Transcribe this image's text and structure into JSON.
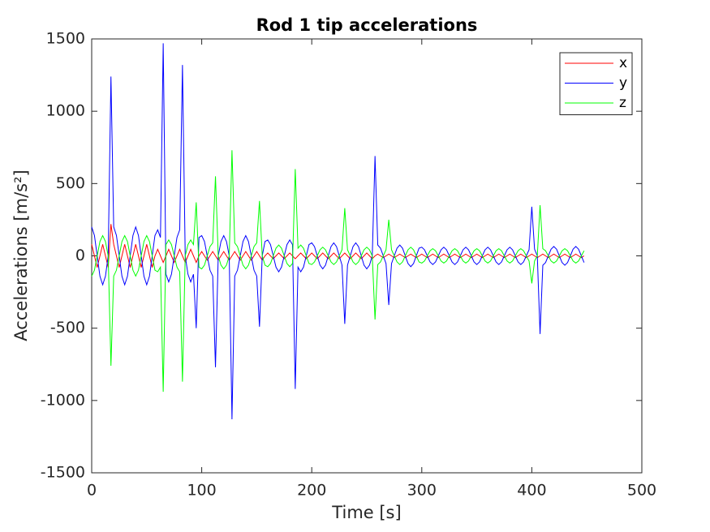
{
  "chart_data": {
    "type": "line",
    "title": "Rod 1 tip accelerations",
    "xlabel": "Time [s]",
    "ylabel": "Accelerations [m/s²]",
    "x": [
      0,
      2.5,
      5,
      7.5,
      10,
      12.5,
      15,
      17.5,
      20,
      22.5,
      25,
      27.5,
      30,
      32.5,
      35,
      37.5,
      40,
      42.5,
      45,
      47.5,
      50,
      52.5,
      55,
      57.5,
      60,
      62.5,
      65,
      67.5,
      70,
      72.5,
      75,
      77.5,
      80,
      82.5,
      85,
      87.5,
      90,
      92.5,
      95,
      97.5,
      100,
      102.5,
      105,
      107.5,
      110,
      112.5,
      115,
      117.5,
      120,
      122.5,
      125,
      127.5,
      130,
      132.5,
      135,
      137.5,
      140,
      142.5,
      145,
      147.5,
      150,
      152.5,
      155,
      157.5,
      160,
      162.5,
      165,
      167.5,
      170,
      172.5,
      175,
      177.5,
      180,
      182.5,
      185,
      187.5,
      190,
      192.5,
      195,
      197.5,
      200,
      202.5,
      205,
      207.5,
      210,
      212.5,
      215,
      217.5,
      220,
      222.5,
      225,
      227.5,
      230,
      232.5,
      235,
      237.5,
      240,
      242.5,
      245,
      247.5,
      250,
      252.5,
      255,
      257.5,
      260,
      262.5,
      265,
      267.5,
      270,
      272.5,
      275,
      277.5,
      280,
      282.5,
      285,
      287.5,
      290,
      292.5,
      295,
      297.5,
      300,
      302.5,
      305,
      307.5,
      310,
      312.5,
      315,
      317.5,
      320,
      322.5,
      325,
      327.5,
      330,
      332.5,
      335,
      337.5,
      340,
      342.5,
      345,
      347.5,
      350,
      352.5,
      355,
      357.5,
      360,
      362.5,
      365,
      367.5,
      370,
      372.5,
      375,
      377.5,
      380,
      382.5,
      385,
      387.5,
      390,
      392.5,
      395,
      397.5,
      400,
      402.5,
      405,
      407.5,
      410,
      412.5,
      415,
      417.5,
      420,
      422.5,
      425,
      427.5,
      430,
      432.5,
      435,
      437.5,
      440,
      442.5,
      445,
      447.5
    ],
    "series": [
      {
        "name": "x",
        "color": "#ff0000",
        "values": [
          80,
          0,
          -80,
          0,
          80,
          0,
          -80,
          220,
          80,
          0,
          -80,
          0,
          80,
          0,
          -80,
          0,
          80,
          0,
          -80,
          0,
          80,
          0,
          -80,
          0,
          45,
          0,
          -45,
          0,
          45,
          0,
          -45,
          0,
          45,
          0,
          -45,
          0,
          45,
          0,
          -45,
          0,
          30,
          0,
          -30,
          0,
          30,
          0,
          -30,
          0,
          30,
          0,
          -30,
          0,
          30,
          0,
          -30,
          0,
          30,
          0,
          -30,
          0,
          30,
          0,
          -30,
          0,
          20,
          0,
          -20,
          0,
          20,
          0,
          -20,
          0,
          20,
          0,
          -20,
          0,
          20,
          0,
          -20,
          0,
          20,
          0,
          -20,
          0,
          20,
          0,
          -20,
          0,
          20,
          0,
          -20,
          0,
          20,
          0,
          -20,
          0,
          20,
          0,
          -20,
          0,
          20,
          0,
          -20,
          0,
          12,
          0,
          -12,
          0,
          12,
          0,
          -12,
          0,
          12,
          0,
          -12,
          0,
          12,
          0,
          -12,
          0,
          12,
          0,
          -12,
          0,
          12,
          0,
          -12,
          0,
          12,
          0,
          -12,
          0,
          12,
          0,
          -12,
          0,
          12,
          0,
          -12,
          0,
          12,
          0,
          -12,
          0,
          12,
          0,
          -12,
          0,
          12,
          0,
          -12,
          0,
          12,
          0,
          -12,
          0,
          12,
          0,
          -12,
          0,
          12,
          0,
          -12,
          0,
          12,
          0,
          -12,
          0,
          12,
          0,
          -12,
          0,
          12,
          0,
          -12,
          0,
          12,
          0,
          -12,
          0
        ]
      },
      {
        "name": "y",
        "color": "#0000ff",
        "values": [
          200,
          141,
          0,
          -141,
          -200,
          -141,
          0,
          1240,
          200,
          141,
          0,
          -141,
          -200,
          -141,
          0,
          141,
          200,
          141,
          0,
          -141,
          -200,
          -141,
          0,
          141,
          180,
          127,
          1470,
          -127,
          -180,
          -127,
          0,
          127,
          180,
          1320,
          0,
          -127,
          -180,
          -127,
          -500,
          127,
          140,
          99,
          0,
          -99,
          -140,
          -770,
          0,
          99,
          140,
          99,
          0,
          -1130,
          -140,
          -99,
          0,
          99,
          140,
          99,
          0,
          -99,
          -140,
          -490,
          0,
          99,
          110,
          78,
          0,
          -78,
          -110,
          -78,
          0,
          78,
          110,
          78,
          -920,
          -78,
          -110,
          -78,
          0,
          78,
          90,
          64,
          0,
          -64,
          -90,
          -64,
          0,
          64,
          90,
          64,
          0,
          -64,
          -470,
          -64,
          0,
          64,
          90,
          64,
          0,
          -64,
          -90,
          -64,
          0,
          690,
          75,
          53,
          0,
          -53,
          -340,
          -53,
          0,
          53,
          75,
          53,
          0,
          -53,
          -75,
          -53,
          0,
          53,
          60,
          42,
          0,
          -42,
          -60,
          -42,
          0,
          42,
          60,
          42,
          0,
          -42,
          -60,
          -42,
          0,
          42,
          60,
          42,
          0,
          -42,
          -60,
          -42,
          0,
          42,
          60,
          42,
          0,
          -42,
          -60,
          -42,
          0,
          42,
          60,
          42,
          0,
          -42,
          -60,
          -42,
          0,
          42,
          340,
          46,
          0,
          -540,
          -65,
          -46,
          0,
          46,
          65,
          46,
          0,
          -46,
          -65,
          -46,
          0,
          46,
          65,
          46,
          0,
          -46
        ]
      },
      {
        "name": "z",
        "color": "#00ff00",
        "values": [
          -140,
          -99,
          0,
          99,
          140,
          99,
          0,
          -760,
          -140,
          -99,
          0,
          99,
          140,
          99,
          0,
          -99,
          -140,
          -99,
          0,
          99,
          140,
          99,
          0,
          -99,
          -110,
          -78,
          -940,
          78,
          110,
          78,
          0,
          -78,
          -110,
          -870,
          0,
          78,
          110,
          78,
          370,
          -78,
          -90,
          -64,
          0,
          64,
          90,
          550,
          0,
          -64,
          -90,
          -64,
          0,
          730,
          90,
          64,
          0,
          -64,
          -90,
          -64,
          0,
          64,
          90,
          380,
          0,
          -64,
          -75,
          -53,
          0,
          53,
          75,
          53,
          0,
          -53,
          -75,
          -53,
          600,
          53,
          75,
          53,
          0,
          -53,
          -60,
          -42,
          0,
          42,
          60,
          42,
          0,
          -42,
          -60,
          -42,
          0,
          42,
          330,
          42,
          0,
          -42,
          -60,
          -42,
          0,
          42,
          60,
          42,
          0,
          -440,
          -60,
          -42,
          0,
          42,
          250,
          42,
          0,
          -42,
          -60,
          -42,
          0,
          42,
          60,
          42,
          0,
          -42,
          -50,
          -35,
          0,
          35,
          50,
          35,
          0,
          -35,
          -50,
          -35,
          0,
          35,
          50,
          35,
          0,
          -35,
          -50,
          -35,
          0,
          35,
          50,
          35,
          0,
          -35,
          -50,
          -35,
          0,
          35,
          50,
          35,
          0,
          -35,
          -50,
          -35,
          0,
          35,
          50,
          35,
          0,
          -35,
          -190,
          -35,
          0,
          350,
          50,
          35,
          0,
          -35,
          -50,
          -35,
          0,
          35,
          50,
          35,
          0,
          -35,
          -50,
          -35,
          0,
          35
        ]
      }
    ],
    "xlim": [
      0,
      500
    ],
    "xticks": [
      0,
      100,
      200,
      300,
      400,
      500
    ],
    "ylim": [
      -1500,
      1500
    ],
    "yticks": [
      -1500,
      -1000,
      -500,
      0,
      500,
      1000,
      1500
    ],
    "grid": false,
    "legend": "northeast"
  }
}
